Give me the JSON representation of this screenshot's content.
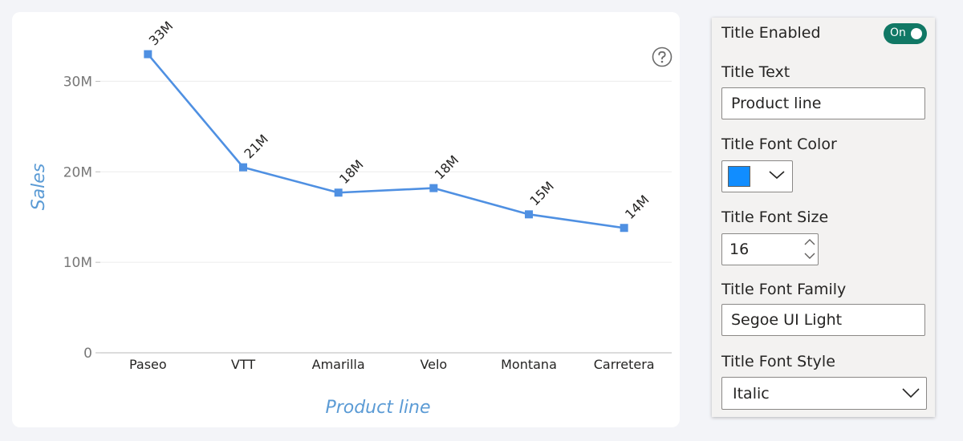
{
  "chart_data": {
    "type": "line",
    "categories": [
      "Paseo",
      "VTT",
      "Amarilla",
      "Velo",
      "Montana",
      "Carretera"
    ],
    "values": [
      33000000,
      20500000,
      17700000,
      18200000,
      15300000,
      13800000
    ],
    "data_labels": [
      "33M",
      "21M",
      "18M",
      "18M",
      "15M",
      "14M"
    ],
    "title": "",
    "xlabel": "Product line",
    "ylabel": "Sales",
    "ylim": [
      0,
      35000000
    ],
    "y_ticks": [
      0,
      10000000,
      20000000,
      30000000
    ],
    "y_tick_labels": [
      "0",
      "10M",
      "20M",
      "30M"
    ],
    "grid": true,
    "legend": "none",
    "line_color": "#4f90e2",
    "axis_label_color": "#5b9bd5"
  },
  "help_icon": "question-circle-icon",
  "panel": {
    "title_enabled_label": "Title Enabled",
    "toggle_state": "On",
    "toggle_color": "#117865",
    "title_text_label": "Title Text",
    "title_text_value": "Product line",
    "font_color_label": "Title Font Color",
    "font_color_value": "#118dff",
    "font_size_label": "Title Font Size",
    "font_size_value": "16",
    "font_family_label": "Title Font Family",
    "font_family_value": "Segoe UI Light",
    "font_style_label": "Title Font Style",
    "font_style_value": "Italic"
  }
}
